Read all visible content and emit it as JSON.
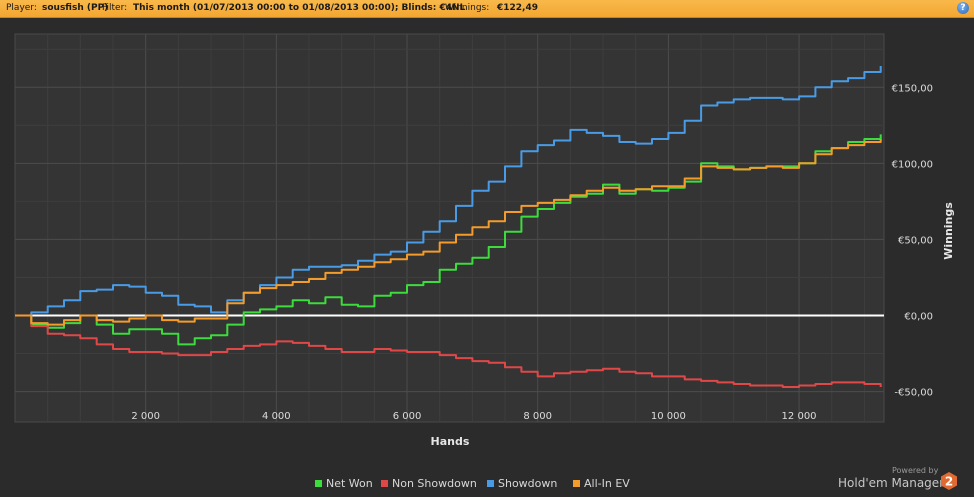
{
  "header": {
    "player_label": "Player:",
    "player_value": "sousfish (PP)",
    "filter_label": "Filter:",
    "filter_value": "This month (01/07/2013 00:00 to 01/08/2013 00:00); Blinds: €4NL",
    "winnings_label": "Winnings:",
    "winnings_value": "€122,49",
    "help_icon": "?"
  },
  "footer": {
    "powered_by": "Powered by",
    "brand_name": "Hold'em Manager",
    "logo_digit": "2"
  },
  "chart_data": {
    "type": "line",
    "title": "",
    "xlabel": "Hands",
    "ylabel": "Winnings",
    "xlim": [
      0,
      13300
    ],
    "ylim": [
      -70,
      185
    ],
    "x_ticks": [
      2000,
      4000,
      6000,
      8000,
      10000,
      12000
    ],
    "x_tick_labels": [
      "2 000",
      "4 000",
      "6 000",
      "8 000",
      "10 000",
      "12 000"
    ],
    "y_ticks": [
      -50,
      0,
      50,
      100,
      150
    ],
    "y_tick_labels": [
      "-€50,00",
      "€0,00",
      "€50,00",
      "€100,00",
      "€150,00"
    ],
    "axis_position": "right",
    "grid": true,
    "legend_position": "bottom",
    "zero_line": true,
    "x": [
      0,
      250,
      500,
      750,
      1000,
      1250,
      1500,
      1750,
      2000,
      2250,
      2500,
      2750,
      3000,
      3250,
      3500,
      3750,
      4000,
      4250,
      4500,
      4750,
      5000,
      5250,
      5500,
      5750,
      6000,
      6250,
      6500,
      6750,
      7000,
      7250,
      7500,
      7750,
      8000,
      8250,
      8500,
      8750,
      9000,
      9250,
      9500,
      9750,
      10000,
      10250,
      10500,
      10750,
      11000,
      11250,
      11500,
      11750,
      12000,
      12250,
      12500,
      12750,
      13000,
      13250
    ],
    "series": [
      {
        "name": "Net Won",
        "color": "#3ddc3d",
        "values": [
          0,
          -6,
          -8,
          -5,
          0,
          -6,
          -12,
          -9,
          -9,
          -12,
          -19,
          -15,
          -13,
          -6,
          2,
          4,
          6,
          10,
          8,
          12,
          7,
          6,
          13,
          15,
          20,
          22,
          30,
          34,
          38,
          45,
          55,
          65,
          70,
          74,
          78,
          80,
          86,
          80,
          83,
          82,
          84,
          88,
          100,
          98,
          96,
          97,
          98,
          98,
          100,
          108,
          110,
          114,
          116,
          119
        ]
      },
      {
        "name": "Non Showdown",
        "color": "#e04848",
        "values": [
          0,
          -7,
          -12,
          -13,
          -15,
          -19,
          -22,
          -24,
          -24,
          -25,
          -26,
          -26,
          -24,
          -22,
          -20,
          -19,
          -17,
          -18,
          -20,
          -22,
          -24,
          -24,
          -22,
          -23,
          -24,
          -24,
          -26,
          -28,
          -30,
          -31,
          -34,
          -37,
          -40,
          -38,
          -37,
          -36,
          -35,
          -37,
          -38,
          -40,
          -40,
          -42,
          -43,
          -44,
          -45,
          -46,
          -46,
          -47,
          -46,
          -45,
          -44,
          -44,
          -45,
          -47
        ]
      },
      {
        "name": "Showdown",
        "color": "#4a9be6",
        "values": [
          0,
          2,
          6,
          10,
          16,
          17,
          20,
          19,
          15,
          13,
          7,
          6,
          2,
          10,
          15,
          20,
          25,
          30,
          32,
          32,
          33,
          36,
          40,
          42,
          48,
          55,
          62,
          72,
          82,
          88,
          98,
          108,
          112,
          115,
          122,
          120,
          118,
          114,
          113,
          116,
          120,
          128,
          138,
          140,
          142,
          143,
          143,
          142,
          144,
          150,
          154,
          156,
          160,
          164
        ]
      },
      {
        "name": "All-In EV",
        "color": "#f39c2b",
        "values": [
          0,
          -5,
          -6,
          -3,
          0,
          -3,
          -4,
          -2,
          0,
          -3,
          -4,
          -2,
          -2,
          8,
          15,
          18,
          20,
          22,
          24,
          28,
          30,
          32,
          35,
          37,
          40,
          42,
          48,
          53,
          58,
          62,
          68,
          72,
          74,
          76,
          79,
          82,
          84,
          82,
          83,
          85,
          85,
          90,
          98,
          97,
          96,
          97,
          98,
          97,
          100,
          106,
          110,
          112,
          114,
          116
        ]
      }
    ]
  }
}
